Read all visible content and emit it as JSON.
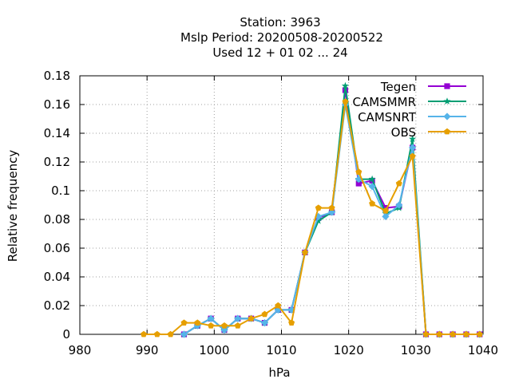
{
  "chart_data": {
    "type": "line",
    "title_lines": [
      "Station:      3963",
      "Mslp  Period: 20200508-20200522",
      "Used  12 + 01 02 ... 24"
    ],
    "xlabel": "hPa",
    "ylabel": "Relative frequency",
    "xlim": [
      980,
      1040
    ],
    "ylim": [
      0,
      0.18
    ],
    "xticks": [
      "980",
      "990",
      "1000",
      "1010",
      "1020",
      "1030",
      "1040"
    ],
    "yticks": [
      "0",
      "0.02",
      "0.04",
      "0.06",
      "0.08",
      "0.1",
      "0.12",
      "0.14",
      "0.16",
      "0.18"
    ],
    "grid": true,
    "legend_position": "top-right",
    "x": [
      989.5,
      991.5,
      993.5,
      995.5,
      997.5,
      999.5,
      1001.5,
      1003.5,
      1005.5,
      1007.5,
      1009.5,
      1011.5,
      1013.5,
      1015.5,
      1017.5,
      1019.5,
      1021.5,
      1023.5,
      1025.5,
      1027.5,
      1029.5,
      1031.5,
      1033.5,
      1035.5,
      1037.5,
      1039.5
    ],
    "series": [
      {
        "name": "Tegen",
        "color": "#9400d3",
        "marker": "square",
        "values": [
          null,
          null,
          null,
          0,
          0.006,
          0.011,
          0.003,
          0.011,
          0.011,
          0.008,
          0.017,
          0.017,
          0.057,
          0.081,
          0.085,
          0.17,
          0.105,
          0.107,
          0.088,
          0.089,
          0.13,
          0,
          0,
          0,
          0,
          0
        ]
      },
      {
        "name": "CAMSMMR",
        "color": "#009e73",
        "marker": "star",
        "values": [
          null,
          null,
          null,
          0,
          0.006,
          0.011,
          0.003,
          0.011,
          0.011,
          0.008,
          0.017,
          0.017,
          0.057,
          0.079,
          0.085,
          0.173,
          0.108,
          0.108,
          0.084,
          0.088,
          0.136,
          0,
          0,
          0,
          0,
          0
        ]
      },
      {
        "name": "CAMSNRT",
        "color": "#56b4e9",
        "marker": "diamond",
        "values": [
          null,
          null,
          null,
          0,
          0.006,
          0.011,
          0.003,
          0.011,
          0.011,
          0.008,
          0.017,
          0.017,
          0.057,
          0.082,
          0.085,
          0.16,
          0.108,
          0.103,
          0.082,
          0.09,
          0.13,
          0,
          0,
          0,
          0,
          0
        ]
      },
      {
        "name": "OBS",
        "color": "#e69f00",
        "marker": "pentagon",
        "values": [
          0,
          0,
          0,
          0.008,
          0.008,
          0.006,
          0.006,
          0.006,
          0.011,
          0.014,
          0.02,
          0.008,
          0.057,
          0.088,
          0.088,
          0.162,
          0.113,
          0.091,
          0.086,
          0.105,
          0.124,
          0,
          0,
          0,
          0,
          0
        ]
      }
    ]
  }
}
